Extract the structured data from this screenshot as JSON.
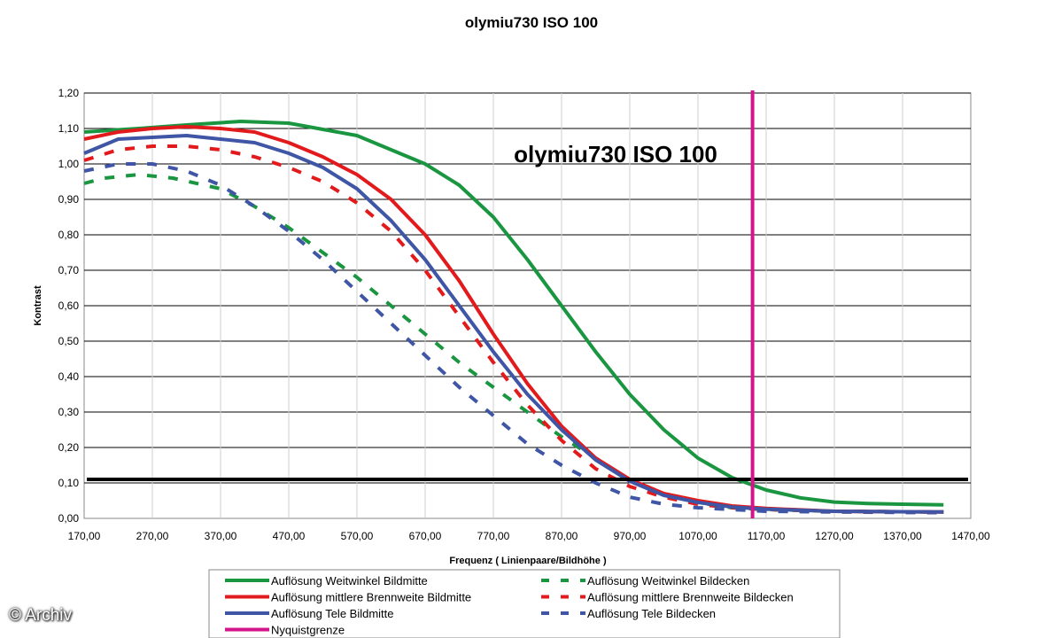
{
  "chart_data": {
    "type": "line",
    "title": "olymiu730 ISO 100",
    "inner_title": "olymiu730 ISO 100",
    "xlabel": "Frequenz ( Linienpaare/Bildhöhe )",
    "ylabel": "Kontrast",
    "xlim": [
      170,
      1470
    ],
    "ylim": [
      0,
      1.2
    ],
    "x_ticks": [
      "170,00",
      "270,00",
      "370,00",
      "470,00",
      "570,00",
      "670,00",
      "770,00",
      "870,00",
      "970,00",
      "1070,00",
      "1170,00",
      "1270,00",
      "1370,00",
      "1470,00"
    ],
    "y_ticks": [
      "0,00",
      "0,10",
      "0,20",
      "0,30",
      "0,40",
      "0,50",
      "0,60",
      "0,70",
      "0,80",
      "0,90",
      "1,00",
      "1,10",
      "1,20"
    ],
    "grid": "horizontal",
    "legend_position": "bottom",
    "threshold_line": 0.11,
    "nyquist_x": 1150,
    "series": [
      {
        "name": "Auflösung Weitwinkel Bildmitte",
        "color": "#1a9641",
        "dash": false,
        "x": [
          170,
          250,
          320,
          400,
          470,
          570,
          620,
          670,
          720,
          770,
          820,
          870,
          920,
          970,
          1020,
          1070,
          1120,
          1170,
          1220,
          1270,
          1320,
          1370,
          1430
        ],
        "y": [
          1.09,
          1.1,
          1.11,
          1.12,
          1.115,
          1.08,
          1.04,
          1.0,
          0.94,
          0.85,
          0.73,
          0.6,
          0.47,
          0.35,
          0.25,
          0.17,
          0.115,
          0.08,
          0.058,
          0.046,
          0.042,
          0.04,
          0.038
        ]
      },
      {
        "name": "Auflösung Weitwinkel Bildecken",
        "color": "#1a9641",
        "dash": true,
        "x": [
          170,
          200,
          250,
          300,
          370,
          420,
          470,
          520,
          570,
          620,
          670,
          720,
          770,
          820,
          870,
          920,
          970,
          1020,
          1070,
          1120,
          1170,
          1270,
          1430
        ],
        "y": [
          0.945,
          0.96,
          0.97,
          0.96,
          0.93,
          0.88,
          0.82,
          0.75,
          0.68,
          0.6,
          0.52,
          0.44,
          0.37,
          0.3,
          0.23,
          0.17,
          0.11,
          0.07,
          0.045,
          0.03,
          0.025,
          0.02,
          0.018
        ]
      },
      {
        "name": "Auflösung mittlere Brennweite Bildmitte",
        "color": "#e31a1c",
        "dash": false,
        "x": [
          170,
          220,
          270,
          320,
          370,
          420,
          470,
          520,
          570,
          620,
          670,
          720,
          770,
          820,
          870,
          920,
          970,
          1020,
          1070,
          1120,
          1170,
          1270,
          1430
        ],
        "y": [
          1.07,
          1.09,
          1.1,
          1.105,
          1.1,
          1.09,
          1.06,
          1.02,
          0.97,
          0.9,
          0.8,
          0.67,
          0.52,
          0.38,
          0.26,
          0.17,
          0.11,
          0.07,
          0.05,
          0.035,
          0.028,
          0.02,
          0.018
        ]
      },
      {
        "name": "Auflösung mittlere Brennweite Bildecken",
        "color": "#e31a1c",
        "dash": true,
        "x": [
          170,
          220,
          270,
          320,
          370,
          420,
          470,
          520,
          570,
          620,
          670,
          720,
          770,
          820,
          870,
          920,
          970,
          1020,
          1070,
          1120,
          1170,
          1270,
          1430
        ],
        "y": [
          1.01,
          1.04,
          1.05,
          1.05,
          1.04,
          1.02,
          0.99,
          0.95,
          0.89,
          0.81,
          0.7,
          0.57,
          0.44,
          0.32,
          0.22,
          0.14,
          0.09,
          0.06,
          0.04,
          0.03,
          0.025,
          0.02,
          0.018
        ]
      },
      {
        "name": "Auflösung Tele Bildmitte",
        "color": "#3f55a5",
        "dash": false,
        "x": [
          170,
          220,
          270,
          320,
          370,
          420,
          470,
          520,
          570,
          620,
          670,
          720,
          770,
          820,
          870,
          920,
          970,
          1020,
          1070,
          1120,
          1170,
          1270,
          1430
        ],
        "y": [
          1.03,
          1.07,
          1.075,
          1.08,
          1.07,
          1.06,
          1.03,
          0.99,
          0.93,
          0.84,
          0.73,
          0.6,
          0.47,
          0.35,
          0.25,
          0.165,
          0.105,
          0.065,
          0.045,
          0.032,
          0.026,
          0.02,
          0.018
        ]
      },
      {
        "name": "Auflösung Tele Bildecken",
        "color": "#3f55a5",
        "dash": true,
        "x": [
          170,
          220,
          270,
          320,
          370,
          420,
          470,
          520,
          570,
          620,
          670,
          720,
          770,
          820,
          870,
          920,
          970,
          1020,
          1070,
          1120,
          1170,
          1270,
          1430
        ],
        "y": [
          0.98,
          1.0,
          1.0,
          0.98,
          0.94,
          0.88,
          0.81,
          0.73,
          0.64,
          0.55,
          0.46,
          0.37,
          0.29,
          0.21,
          0.15,
          0.1,
          0.06,
          0.04,
          0.03,
          0.025,
          0.02,
          0.018,
          0.016
        ]
      }
    ],
    "nyquist": {
      "name": "Nyquistgrenze",
      "color": "#d4148a"
    },
    "threshold_color": "#000000"
  },
  "watermark": "© Archiv"
}
